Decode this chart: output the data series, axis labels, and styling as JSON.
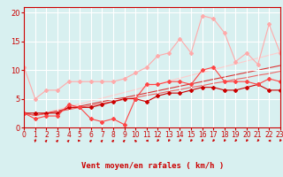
{
  "x": [
    0,
    1,
    2,
    3,
    4,
    5,
    6,
    7,
    8,
    9,
    10,
    11,
    12,
    13,
    14,
    15,
    16,
    17,
    18,
    19,
    20,
    21,
    22,
    23
  ],
  "lines": [
    {
      "y": [
        10.5,
        5.0,
        6.5,
        6.5,
        8.0,
        8.0,
        8.0,
        8.0,
        8.0,
        8.5,
        9.5,
        10.5,
        12.5,
        13.0,
        15.5,
        13.0,
        19.5,
        19.0,
        16.5,
        11.5,
        13.0,
        11.0,
        18.0,
        13.0
      ],
      "color": "#ffaaaa",
      "lw": 0.8,
      "marker": "D",
      "ms": 2.0
    },
    {
      "y": [
        2.5,
        2.5,
        2.5,
        2.5,
        3.5,
        3.5,
        3.5,
        4.0,
        4.5,
        5.0,
        5.0,
        4.5,
        5.5,
        6.0,
        6.0,
        6.5,
        7.0,
        7.0,
        6.5,
        6.5,
        7.0,
        7.5,
        6.5,
        6.5
      ],
      "color": "#cc0000",
      "lw": 0.8,
      "marker": "D",
      "ms": 2.0
    },
    {
      "y": [
        2.5,
        1.5,
        2.0,
        2.0,
        4.0,
        3.5,
        1.5,
        1.0,
        1.5,
        0.5,
        5.0,
        7.5,
        7.5,
        8.0,
        8.0,
        7.5,
        10.0,
        10.5,
        8.0,
        8.0,
        8.0,
        7.5,
        8.5,
        8.0
      ],
      "color": "#ff4444",
      "lw": 0.8,
      "marker": "D",
      "ms": 2.0
    },
    {
      "y": [
        2.5,
        2.1,
        2.6,
        3.1,
        3.6,
        4.1,
        4.6,
        5.1,
        5.6,
        6.1,
        6.6,
        7.1,
        7.6,
        8.1,
        8.6,
        9.1,
        9.6,
        10.1,
        10.6,
        11.1,
        11.6,
        12.1,
        12.6,
        13.1
      ],
      "color": "#ffcccc",
      "lw": 0.8,
      "marker": null,
      "ms": 0
    },
    {
      "y": [
        2.5,
        2.1,
        2.5,
        2.9,
        3.3,
        3.7,
        4.1,
        4.5,
        4.9,
        5.2,
        5.6,
        6.0,
        6.4,
        6.8,
        7.2,
        7.6,
        8.0,
        8.4,
        8.8,
        9.2,
        9.6,
        10.0,
        10.4,
        10.8
      ],
      "color": "#dd3333",
      "lw": 0.8,
      "marker": null,
      "ms": 0
    },
    {
      "y": [
        2.5,
        2.1,
        2.4,
        2.8,
        3.1,
        3.5,
        3.8,
        4.2,
        4.5,
        4.9,
        5.2,
        5.6,
        5.9,
        6.3,
        6.6,
        7.0,
        7.3,
        7.7,
        8.0,
        8.4,
        8.7,
        9.1,
        9.4,
        9.8
      ],
      "color": "#ee6666",
      "lw": 0.8,
      "marker": null,
      "ms": 0
    }
  ],
  "arrow_angles": [
    225,
    200,
    45,
    50,
    55,
    90,
    45,
    45,
    45,
    45,
    315,
    270,
    225,
    225,
    225,
    225,
    225,
    225,
    225,
    225,
    225,
    225,
    270,
    225
  ],
  "xlabel": "Vent moyen/en rafales ( km/h )",
  "xlim": [
    0,
    23
  ],
  "ylim": [
    0,
    21
  ],
  "yticks": [
    0,
    5,
    10,
    15,
    20
  ],
  "xticks": [
    0,
    1,
    2,
    3,
    4,
    5,
    6,
    7,
    8,
    9,
    10,
    11,
    12,
    13,
    14,
    15,
    16,
    17,
    18,
    19,
    20,
    21,
    22,
    23
  ],
  "bg_color": "#d8f0f0",
  "grid_color": "#ffffff",
  "text_color": "#cc0000",
  "arrow_color": "#cc0000",
  "xlabel_fontsize": 6.5,
  "tick_fontsize": 5.5,
  "ytick_fontsize": 6.0
}
